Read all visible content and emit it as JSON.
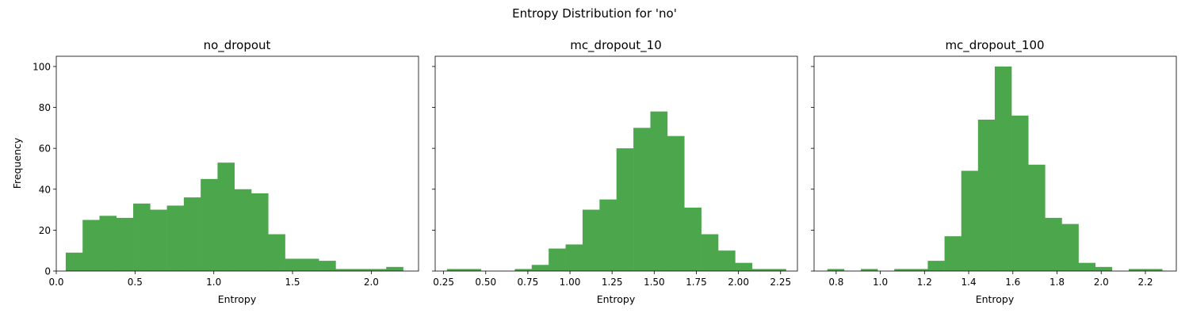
{
  "figure": {
    "title": "Entropy Distribution for 'no'"
  },
  "style": {
    "bar_color": "#4ca64c",
    "axis_color": "#000000"
  },
  "chart_data": [
    {
      "type": "bar",
      "title": "no_dropout",
      "xlabel": "Entropy",
      "ylabel": "Frequency",
      "xlim": [
        0.0,
        2.3
      ],
      "ylim": [
        0,
        105
      ],
      "xticks": [
        0.0,
        0.5,
        1.0,
        1.5,
        2.0
      ],
      "xtick_labels": [
        "0.0",
        "0.5",
        "1.0",
        "1.5",
        "2.0"
      ],
      "yticks": [
        0,
        20,
        40,
        60,
        80,
        100
      ],
      "ytick_labels": [
        "0",
        "20",
        "40",
        "60",
        "80",
        "100"
      ],
      "bin_start": 0.06,
      "bin_width": 0.1071,
      "values": [
        9,
        25,
        27,
        26,
        33,
        30,
        32,
        36,
        45,
        53,
        40,
        38,
        18,
        6,
        6,
        5,
        1,
        1,
        1,
        2
      ]
    },
    {
      "type": "bar",
      "title": "mc_dropout_10",
      "xlabel": "Entropy",
      "ylabel": "",
      "xlim": [
        0.2,
        2.35
      ],
      "ylim": [
        0,
        105
      ],
      "xticks": [
        0.25,
        0.5,
        0.75,
        1.0,
        1.25,
        1.5,
        1.75,
        2.0,
        2.25
      ],
      "xtick_labels": [
        "0.25",
        "0.50",
        "0.75",
        "1.00",
        "1.25",
        "1.50",
        "1.75",
        "2.00",
        "2.25"
      ],
      "yticks": [
        0,
        20,
        40,
        60,
        80,
        100
      ],
      "ytick_labels": [],
      "bin_start": 0.27,
      "bin_width": 0.1006,
      "values": [
        1,
        1,
        0,
        0,
        1,
        3,
        11,
        13,
        30,
        35,
        60,
        70,
        78,
        66,
        31,
        18,
        10,
        4,
        1,
        1
      ]
    },
    {
      "type": "bar",
      "title": "mc_dropout_100",
      "xlabel": "Entropy",
      "ylabel": "",
      "xlim": [
        0.7,
        2.34
      ],
      "ylim": [
        0,
        105
      ],
      "xticks": [
        0.8,
        1.0,
        1.2,
        1.4,
        1.6,
        1.8,
        2.0,
        2.2
      ],
      "xtick_labels": [
        "0.8",
        "1.0",
        "1.2",
        "1.4",
        "1.6",
        "1.8",
        "2.0",
        "2.2"
      ],
      "yticks": [
        0,
        20,
        40,
        60,
        80,
        100
      ],
      "ytick_labels": [],
      "bin_start": 0.76,
      "bin_width": 0.0758,
      "values": [
        1,
        0,
        1,
        0,
        1,
        1,
        5,
        17,
        49,
        74,
        100,
        76,
        52,
        26,
        23,
        4,
        2,
        0,
        1,
        1
      ]
    }
  ]
}
